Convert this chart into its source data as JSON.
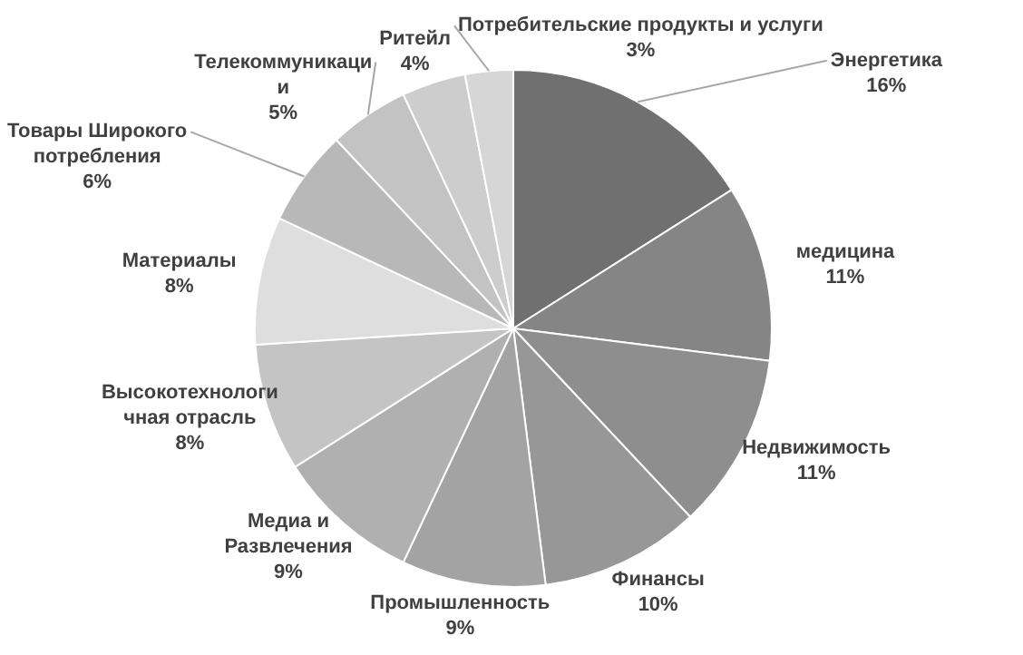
{
  "chart_data": {
    "type": "pie",
    "categories": [
      "Энергетика",
      "медицина",
      "Недвижимость",
      "Финансы",
      "Промышленность",
      "Медиа и Развлечения",
      "Высокотехнологичная отрасль",
      "Материалы",
      "Товары Широкого потребления",
      "Телекоммуникации",
      "Ритейл",
      "Потребительские продукты и услуги"
    ],
    "values": [
      16,
      11,
      11,
      10,
      9,
      9,
      8,
      8,
      6,
      5,
      4,
      3
    ],
    "colors": [
      "#707070",
      "#858585",
      "#8e8e8e",
      "#979797",
      "#a3a3a3",
      "#b0b0b0",
      "#c4c4c4",
      "#dedede",
      "#b8b8b8",
      "#c3c3c3",
      "#cdcdcd",
      "#d6d6d6"
    ],
    "value_labels": [
      "16%",
      "11%",
      "11%",
      "10%",
      "9%",
      "9%",
      "8%",
      "8%",
      "6%",
      "5%",
      "4%",
      "3%"
    ]
  }
}
